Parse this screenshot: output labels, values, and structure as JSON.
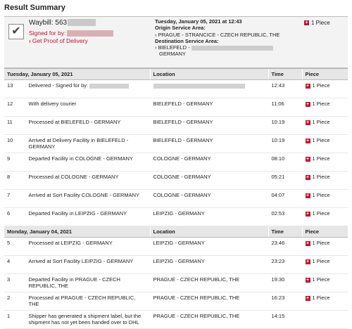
{
  "page": {
    "title": "Result Summary"
  },
  "summary": {
    "waybill_label": "Waybill:",
    "waybill_value": "563",
    "signed_for": "Signed for by:",
    "proof_link": "Get Proof of Delivery",
    "date_time": "Tuesday, January 05, 2021 at 12:43",
    "origin_label": "Origin Service Area:",
    "origin_value": "PRAGUE - STRANCICE - CZECH REPUBLIC, THE",
    "dest_label": "Destination Service Area:",
    "dest_value_1": "BIELEFELD -",
    "dest_value_2": "GERMANY",
    "piece_link": "1 Piece"
  },
  "columns": {
    "location": "Location",
    "time": "Time",
    "piece": "Piece"
  },
  "days": [
    {
      "date": "Tuesday, January 05, 2021",
      "rows": [
        {
          "num": "13",
          "desc": "Delivered - Signed for by:",
          "loc": "",
          "time": "12:43",
          "piece": "1 Piece"
        },
        {
          "num": "12",
          "desc": "With delivery courier",
          "loc": "BIELEFELD - GERMANY",
          "time": "11:06",
          "piece": "1 Piece"
        },
        {
          "num": "11",
          "desc": "Processed at BIELEFELD - GERMANY",
          "loc": "BIELEFELD - GERMANY",
          "time": "10:19",
          "piece": "1 Piece"
        },
        {
          "num": "10",
          "desc": "Arrived at Delivery Facility in BIELEFELD - GERMANY",
          "loc": "BIELEFELD - GERMANY",
          "time": "10:19",
          "piece": "1 Piece"
        },
        {
          "num": "9",
          "desc": "Departed Facility in COLOGNE - GERMANY",
          "loc": "COLOGNE - GERMANY",
          "time": "08:10",
          "piece": "1 Piece"
        },
        {
          "num": "8",
          "desc": "Processed at COLOGNE - GERMANY",
          "loc": "COLOGNE - GERMANY",
          "time": "05:21",
          "piece": "1 Piece"
        },
        {
          "num": "7",
          "desc": "Arrived at Sort Facility COLOGNE - GERMANY",
          "loc": "COLOGNE - GERMANY",
          "time": "04:07",
          "piece": "1 Piece"
        },
        {
          "num": "6",
          "desc": "Departed Facility in LEIPZIG - GERMANY",
          "loc": "LEIPZIG - GERMANY",
          "time": "02:53",
          "piece": "1 Piece"
        }
      ]
    },
    {
      "date": "Monday, January 04, 2021",
      "rows": [
        {
          "num": "5",
          "desc": "Processed at LEIPZIG - GERMANY",
          "loc": "LEIPZIG - GERMANY",
          "time": "23:46",
          "piece": "1 Piece"
        },
        {
          "num": "4",
          "desc": "Arrived at Sort Facility LEIPZIG - GERMANY",
          "loc": "LEIPZIG - GERMANY",
          "time": "23:23",
          "piece": "1 Piece"
        },
        {
          "num": "3",
          "desc": "Departed Facility in PRAGUE - CZECH REPUBLIC, THE",
          "loc": "PRAGUE - CZECH REPUBLIC, THE",
          "time": "19:30",
          "piece": "1 Piece"
        },
        {
          "num": "2",
          "desc": "Processed at PRAGUE - CZECH REPUBLIC, THE",
          "loc": "PRAGUE - CZECH REPUBLIC, THE",
          "time": "16:23",
          "piece": "1 Piece"
        },
        {
          "num": "1",
          "desc": "Shipper has generated a shipment label, but the shipment has not yet been handed over to DHL",
          "loc": "PRAGUE - CZECH REPUBLIC, THE",
          "time": "14:15",
          "piece": ""
        }
      ]
    }
  ]
}
